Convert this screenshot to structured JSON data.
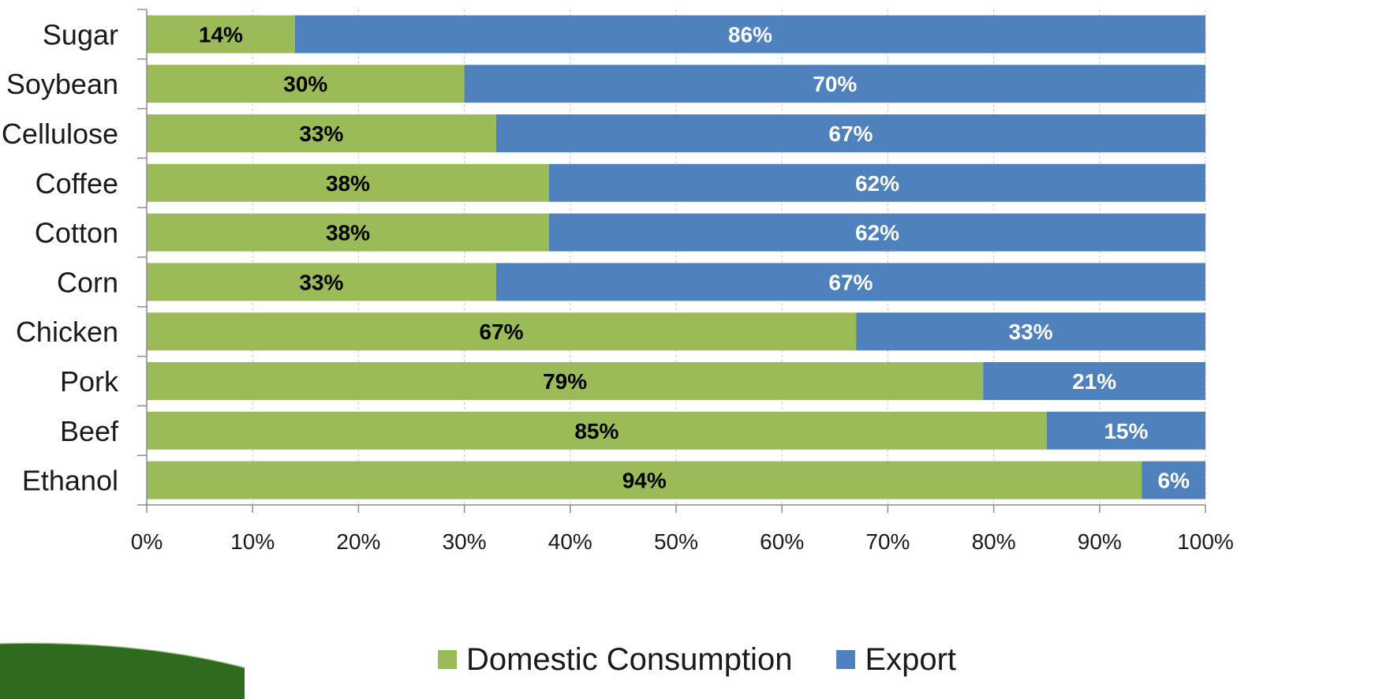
{
  "chart_data": {
    "type": "bar",
    "orientation": "horizontal",
    "stacked": true,
    "percent_stacked": true,
    "categories": [
      "Sugar",
      "Soybean",
      "Cellulose",
      "Coffee",
      "Cotton",
      "Corn",
      "Chicken",
      "Pork",
      "Beef",
      "Ethanol"
    ],
    "series": [
      {
        "name": "Domestic Consumption",
        "color": "#9BBB59",
        "label_color": "#000000",
        "values": [
          14,
          30,
          33,
          38,
          38,
          33,
          67,
          79,
          85,
          94
        ],
        "labels": [
          "14%",
          "30%",
          "33%",
          "38%",
          "38%",
          "33%",
          "67%",
          "79%",
          "85%",
          "94%"
        ]
      },
      {
        "name": "Export",
        "color": "#4F81BD",
        "label_color": "#FFFFFF",
        "values": [
          86,
          70,
          67,
          62,
          62,
          67,
          33,
          21,
          15,
          6
        ],
        "labels": [
          "86%",
          "70%",
          "67%",
          "62%",
          "62%",
          "67%",
          "33%",
          "21%",
          "15%",
          "6%"
        ]
      }
    ],
    "xlim": [
      0,
      100
    ],
    "x_ticks": [
      "0%",
      "10%",
      "20%",
      "30%",
      "40%",
      "50%",
      "60%",
      "70%",
      "80%",
      "90%",
      "100%"
    ],
    "grid": "vertical dashed",
    "legend_position": "bottom",
    "title": "",
    "xlabel": "",
    "ylabel": ""
  },
  "legend": {
    "items": [
      {
        "label": "Domestic Consumption",
        "color": "#9BBB59"
      },
      {
        "label": "Export",
        "color": "#4F81BD"
      }
    ]
  },
  "decor": {
    "swoosh_color": "#2E6B1F"
  }
}
